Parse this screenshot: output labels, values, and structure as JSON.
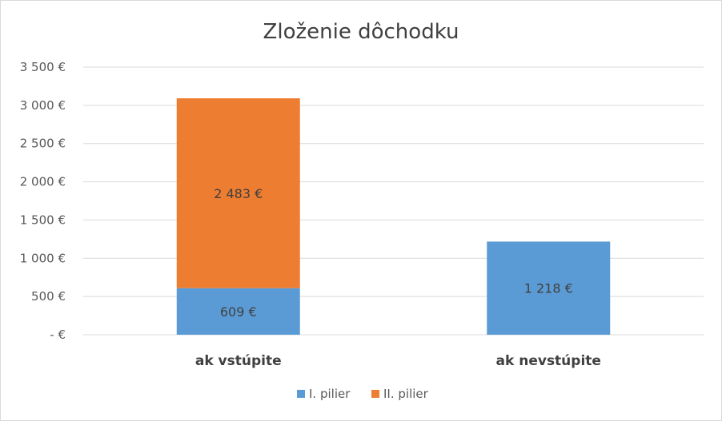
{
  "chart_data": {
    "type": "bar",
    "stacked": true,
    "title": "Zloženie dôchodku",
    "categories": [
      "ak vstúpite",
      "ak nevstúpite"
    ],
    "series": [
      {
        "name": "I. pilier",
        "values": [
          609,
          1218
        ],
        "labels": [
          "609 €",
          "1 218 €"
        ],
        "color": "#5b9bd5"
      },
      {
        "name": "II. pilier",
        "values": [
          2483,
          0
        ],
        "labels": [
          "2 483 €",
          ""
        ],
        "color": "#ed7d31"
      }
    ],
    "ylim": [
      0,
      3500
    ],
    "yticks": [
      {
        "value": 0,
        "label": "-   €"
      },
      {
        "value": 500,
        "label": "500 €"
      },
      {
        "value": 1000,
        "label": "1 000 €"
      },
      {
        "value": 1500,
        "label": "1 500 €"
      },
      {
        "value": 2000,
        "label": "2 000 €"
      },
      {
        "value": 2500,
        "label": "2 500 €"
      },
      {
        "value": 3000,
        "label": "3 000 €"
      },
      {
        "value": 3500,
        "label": "3 500 €"
      }
    ],
    "grid": true,
    "legend": "bottom"
  }
}
